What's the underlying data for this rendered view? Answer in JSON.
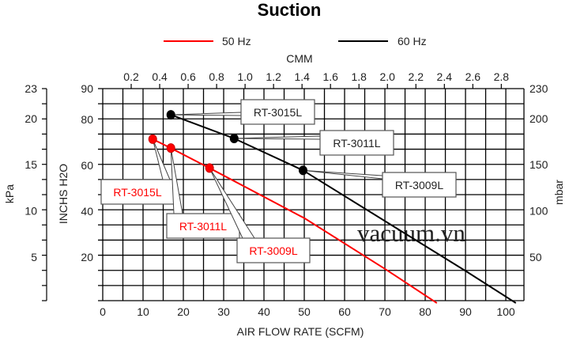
{
  "chart_data": {
    "type": "line",
    "title": "Suction",
    "xlabel": "AIR FLOW RATE (SCFM)",
    "ylabel": "INCHS H2O",
    "x2label": "CMM",
    "y2label_left": "kPa",
    "y3label_right": "mbar",
    "xlim": [
      0,
      104.5
    ],
    "ylim_mbar": [
      2.6,
      232.6
    ],
    "grid": true,
    "legend_position": "top-center",
    "x_ticks": [
      0,
      10,
      20,
      30,
      40,
      50,
      60,
      70,
      80,
      90,
      100
    ],
    "x_tick_labels": [
      "0",
      "10",
      "20",
      "30",
      "40",
      "50",
      "60",
      "70",
      "80",
      "90",
      "100"
    ],
    "cmm_ticks": [
      "0.2",
      "0.4",
      "0.6",
      "0.8",
      "1.0",
      "1.2",
      "1.4",
      "1.6",
      "1.8",
      "2.0",
      "2.2",
      "2.4",
      "2.6",
      "2.8"
    ],
    "y_ticks_inh2o": [
      20,
      40,
      60,
      80,
      90
    ],
    "y_tick_labels_inh2o": [
      "20",
      "40",
      "60",
      "80",
      "90"
    ],
    "kpa_ticks": [
      5,
      10,
      15,
      20,
      23
    ],
    "kpa_tick_labels": [
      "5",
      "10",
      "15",
      "20",
      "23"
    ],
    "mbar_ticks": [
      50,
      100,
      150,
      200,
      230
    ],
    "mbar_tick_labels": [
      "50",
      "100",
      "150",
      "200",
      "230"
    ],
    "series": [
      {
        "name": "50 Hz",
        "color": "#ff0000",
        "x": [
          12.4,
          16.9,
          26.5,
          50,
          70,
          82.9
        ],
        "y": [
          71.4,
          67.5,
          58.8,
          37,
          14.9,
          0
        ],
        "markers": [
          {
            "label": "RT-3015L",
            "x": 12.4,
            "y": 71.4
          },
          {
            "label": "RT-3011L",
            "x": 16.9,
            "y": 67.5
          },
          {
            "label": "RT-3009L",
            "x": 26.5,
            "y": 58.8
          }
        ]
      },
      {
        "name": "60 Hz",
        "color": "#000000",
        "x": [
          16.9,
          32.6,
          49.7,
          90,
          102.5
        ],
        "y": [
          82.0,
          71.7,
          57.8,
          14.0,
          0
        ],
        "markers": [
          {
            "label": "RT-3015L",
            "x": 16.9,
            "y": 82.0
          },
          {
            "label": "RT-3011L",
            "x": 32.6,
            "y": 71.7
          },
          {
            "label": "RT-3009L",
            "x": 49.7,
            "y": 57.8
          }
        ]
      }
    ],
    "watermark": "vacuum.vn"
  }
}
